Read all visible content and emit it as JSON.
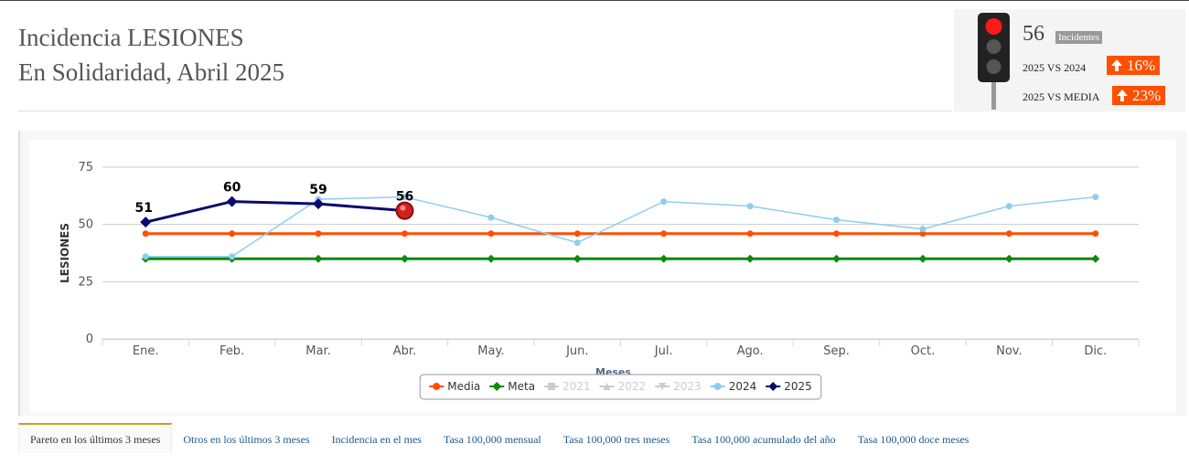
{
  "header": {
    "title": "Incidencia LESIONES",
    "subtitle": "En Solidaridad, Abril 2025"
  },
  "indicator": {
    "count": "56",
    "badge": "Incidentes",
    "comparisons": [
      {
        "label": "2025 VS 2024",
        "value": "16%"
      },
      {
        "label": "2025 VS MEDIA",
        "value": "23%"
      }
    ]
  },
  "chart_data": {
    "type": "line",
    "x_label": "Meses",
    "y_label": "LESIONES",
    "categories": [
      "Ene.",
      "Feb.",
      "Mar.",
      "Abr.",
      "May.",
      "Jun.",
      "Jul.",
      "Ago.",
      "Sep.",
      "Oct.",
      "Nov.",
      "Dic."
    ],
    "ylim": [
      0,
      75
    ],
    "yticks": [
      0,
      25,
      50,
      75
    ],
    "grid": true,
    "series": [
      {
        "name": "Media",
        "color": "#ff4f00",
        "marker": "circle",
        "values": [
          46,
          46,
          46,
          46,
          46,
          46,
          46,
          46,
          46,
          46,
          46,
          46
        ]
      },
      {
        "name": "Meta",
        "color": "#0b8a0b",
        "marker": "diamond",
        "values": [
          35,
          35,
          35,
          35,
          35,
          35,
          35,
          35,
          35,
          35,
          35,
          35
        ]
      },
      {
        "name": "2021",
        "color": "#cccccc",
        "marker": "square",
        "hidden": true,
        "values": [
          null,
          null,
          null,
          null,
          null,
          null,
          null,
          null,
          null,
          null,
          null,
          null
        ]
      },
      {
        "name": "2022",
        "color": "#cccccc",
        "marker": "triangle",
        "hidden": true,
        "values": [
          null,
          null,
          null,
          null,
          null,
          null,
          null,
          null,
          null,
          null,
          null,
          null
        ]
      },
      {
        "name": "2023",
        "color": "#cccccc",
        "marker": "triangle-down",
        "hidden": true,
        "values": [
          null,
          null,
          null,
          null,
          null,
          null,
          null,
          null,
          null,
          null,
          null,
          null
        ]
      },
      {
        "name": "2024",
        "color": "#8fcdf0",
        "marker": "circle",
        "values": [
          36,
          36,
          61,
          62,
          53,
          42,
          60,
          58,
          52,
          48,
          58,
          62
        ]
      },
      {
        "name": "2025",
        "color": "#0a0a6e",
        "marker": "diamond",
        "data_labels": true,
        "values": [
          51,
          60,
          59,
          56,
          null,
          null,
          null,
          null,
          null,
          null,
          null,
          null
        ]
      }
    ]
  },
  "tabs": [
    "Pareto en los últimos 3 meses",
    "Otros en los últimos 3 meses",
    "Incidencia en el mes",
    "Tasa 100,000 mensual",
    "Tasa 100,000 tres meses",
    "Tasa 100,000 acumulado del año",
    "Tasa 100,000 doce meses"
  ]
}
